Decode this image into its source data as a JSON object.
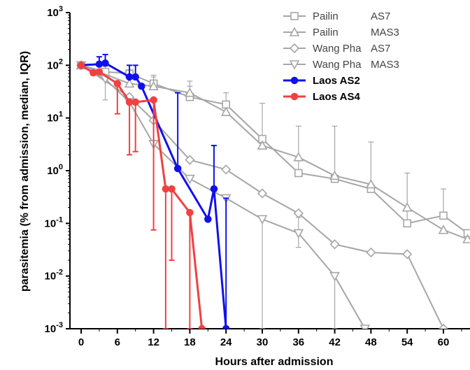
{
  "chart_data": {
    "type": "line",
    "xlabel": "Hours after admission",
    "ylabel": "parasitemia (% from admission, median, IQR)",
    "x_ticks": [
      0,
      6,
      12,
      18,
      24,
      30,
      36,
      42,
      48,
      54,
      60
    ],
    "y_scale": "log",
    "y_ticks": [
      {
        "value": 1000,
        "base": "10",
        "exp": "3"
      },
      {
        "value": 100,
        "base": "10",
        "exp": "2"
      },
      {
        "value": 10,
        "base": "10",
        "exp": "1"
      },
      {
        "value": 1,
        "base": "10",
        "exp": "0"
      },
      {
        "value": 0.1,
        "base": "10",
        "exp": "-1"
      },
      {
        "value": 0.01,
        "base": "10",
        "exp": "-2"
      },
      {
        "value": 0.001,
        "base": "10",
        "exp": "-3"
      }
    ],
    "xlim": [
      -1,
      64
    ],
    "ylim": [
      0.001,
      1000
    ],
    "legend_position": "top-right",
    "series": [
      {
        "name": "Pailin AS7",
        "legend_name": "Pailin",
        "legend_code": "AS7",
        "color": "#a6a6a6",
        "marker": "square",
        "bold": false,
        "x": [
          0,
          4,
          8,
          12,
          18,
          24,
          30,
          36,
          42,
          48,
          54,
          60,
          64
        ],
        "y": [
          100,
          75,
          70,
          45,
          25,
          18,
          4,
          0.9,
          0.7,
          0.45,
          0.1,
          0.14,
          0.065
        ],
        "err_hi": [
          null,
          95,
          100,
          65,
          50,
          30,
          19,
          7,
          7,
          3.5,
          0.9,
          0.45,
          null
        ],
        "err_lo": [
          null,
          null,
          null,
          null,
          null,
          null,
          null,
          null,
          null,
          null,
          null,
          null,
          null
        ]
      },
      {
        "name": "Pailin MAS3",
        "legend_name": "Pailin",
        "legend_code": "MAS3",
        "color": "#a6a6a6",
        "marker": "triangle-up",
        "bold": false,
        "x": [
          0,
          8,
          12,
          18,
          24,
          30,
          36,
          42,
          48,
          54,
          60,
          64
        ],
        "y": [
          100,
          45,
          40,
          30,
          13,
          3,
          1.8,
          0.8,
          0.55,
          0.2,
          0.075,
          0.05
        ],
        "err_hi": [
          null,
          80,
          60,
          40,
          null,
          null,
          null,
          null,
          null,
          null,
          null,
          null
        ],
        "err_lo": [
          null,
          null,
          null,
          null,
          null,
          null,
          null,
          null,
          null,
          null,
          null,
          null
        ]
      },
      {
        "name": "Wang Pha AS7",
        "legend_name": "Wang Pha",
        "legend_code": "AS7",
        "color": "#a6a6a6",
        "marker": "diamond",
        "bold": false,
        "x": [
          0,
          8,
          12,
          18,
          24,
          30,
          36,
          42,
          48,
          54,
          60,
          62
        ],
        "y": [
          100,
          25,
          9,
          1.6,
          1.05,
          0.37,
          0.155,
          0.04,
          0.028,
          0.026,
          0.001,
          0.0008
        ],
        "err_hi": [
          null,
          null,
          null,
          null,
          null,
          null,
          null,
          null,
          null,
          null,
          null,
          null
        ],
        "err_lo": [
          null,
          null,
          null,
          null,
          null,
          null,
          null,
          null,
          null,
          null,
          null,
          null
        ]
      },
      {
        "name": "Wang Pha MAS3",
        "legend_name": "Wang Pha",
        "legend_code": "MAS3",
        "color": "#a6a6a6",
        "marker": "triangle-down",
        "bold": false,
        "x": [
          0,
          4,
          8,
          12,
          18,
          24,
          30,
          36,
          42,
          47
        ],
        "y": [
          100,
          55,
          20,
          3.2,
          0.7,
          0.3,
          0.12,
          0.065,
          0.01,
          0.001
        ],
        "err_hi": [
          null,
          null,
          null,
          null,
          null,
          null,
          null,
          0.13,
          null,
          null
        ],
        "err_lo": [
          null,
          22,
          null,
          null,
          null,
          null,
          0.001,
          0.035,
          0.001,
          null
        ]
      },
      {
        "name": "Laos AS2",
        "legend_name": "Laos AS2",
        "legend_code": "",
        "color": "#1010ee",
        "marker": "circle",
        "bold": true,
        "x": [
          0,
          3,
          4,
          8,
          9,
          10,
          16,
          21,
          22,
          24
        ],
        "y": [
          100,
          105,
          110,
          60,
          60,
          40,
          1.1,
          0.12,
          0.45,
          0.001
        ],
        "err_hi": [
          null,
          145,
          160,
          100,
          100,
          null,
          30,
          null,
          3,
          0.3
        ],
        "err_lo": [
          null,
          null,
          null,
          null,
          null,
          null,
          null,
          null,
          null,
          null
        ]
      },
      {
        "name": "Laos AS4",
        "legend_name": "Laos AS4",
        "legend_code": "",
        "color": "#f04040",
        "marker": "circle",
        "bold": true,
        "x": [
          0,
          2,
          3,
          6,
          8,
          9,
          12,
          14,
          15,
          18,
          20
        ],
        "y": [
          100,
          72,
          75,
          45,
          20,
          20,
          22,
          0.45,
          0.45,
          0.16,
          0.001
        ],
        "err_hi": [
          null,
          null,
          null,
          null,
          null,
          null,
          null,
          null,
          null,
          null,
          null
        ],
        "err_lo": [
          null,
          null,
          null,
          12,
          2,
          2.3,
          0.075,
          0.001,
          0.02,
          0.001,
          null
        ]
      }
    ]
  }
}
